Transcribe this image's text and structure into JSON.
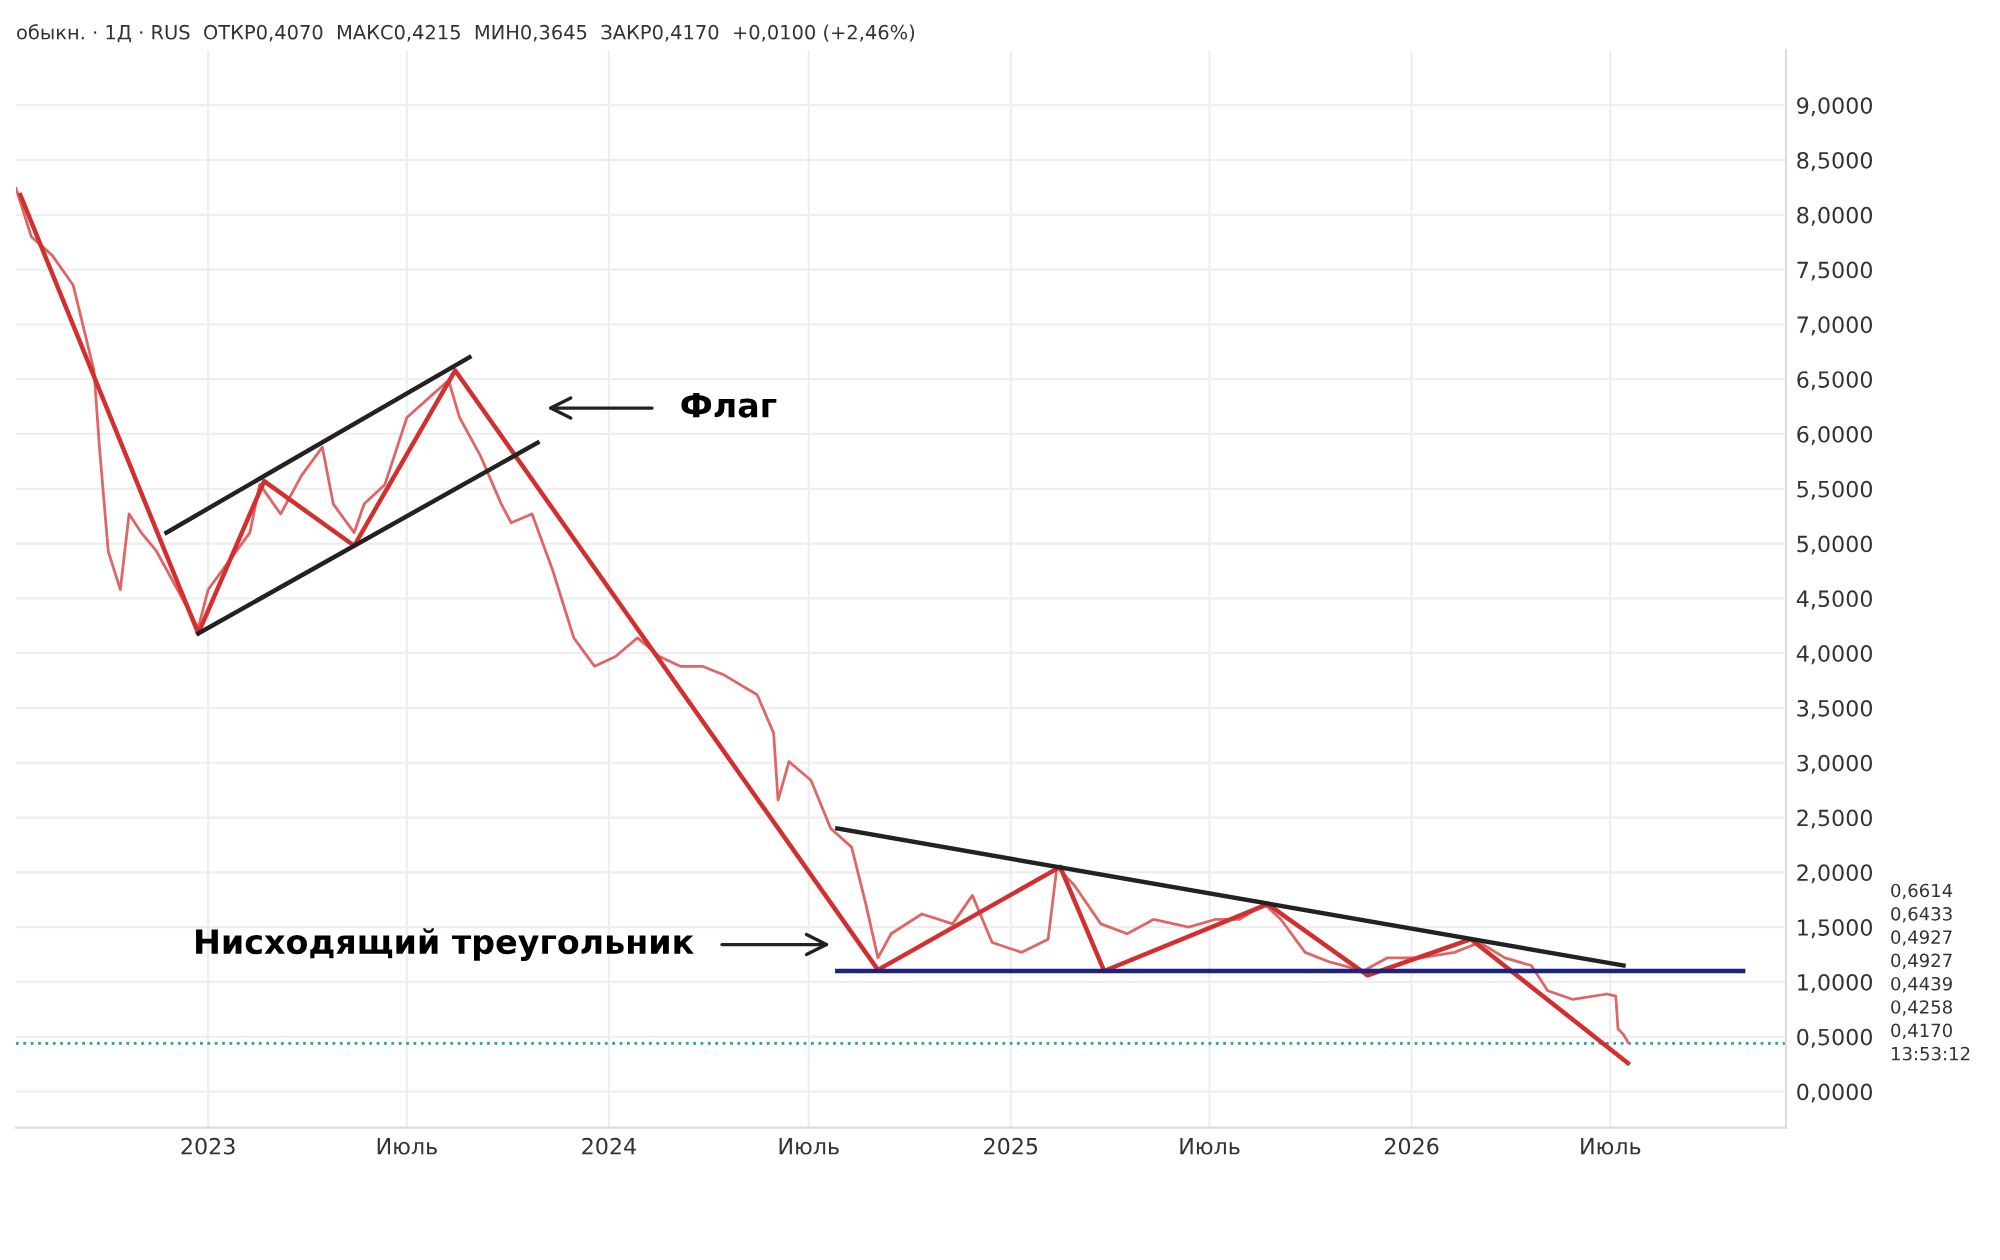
{
  "chart_data": {
    "type": "line",
    "title": "обыкн. · 1Д · RUS  ОТКР0,4070  МАКС0,4215  МИН0,3645  ЗАКР0,4170  +0,0100 (+2,46%)",
    "series": [
      {
        "color": "#e06666",
        "x": [
          "2022-07-10",
          "2022-07-24",
          "2022-08-12",
          "2022-08-31",
          "2022-09-19",
          "2022-09-24",
          "2022-10-02",
          "2022-10-13",
          "2022-10-21",
          "2022-11-01",
          "2022-11-15",
          "2022-12-04",
          "2022-12-23",
          "2023-01-01",
          "2023-01-20",
          "2023-02-08",
          "2023-02-17",
          "2023-03-08",
          "2023-03-27",
          "2023-04-15",
          "2023-04-25",
          "2023-05-14",
          "2023-05-23",
          "2023-06-11",
          "2023-07-01",
          "2023-07-20",
          "2023-08-08",
          "2023-08-18",
          "2023-09-06",
          "2023-09-25",
          "2023-10-04",
          "2023-10-23",
          "2023-11-11",
          "2023-11-30",
          "2023-12-19",
          "2024-01-07",
          "2024-01-27",
          "2024-02-16",
          "2024-03-06",
          "2024-03-26",
          "2024-04-15",
          "2024-05-15",
          "2024-05-30",
          "2024-06-03",
          "2024-06-13",
          "2024-07-03",
          "2024-07-21",
          "2024-08-09",
          "2024-08-22",
          "2024-09-02",
          "2024-09-14",
          "2024-10-12",
          "2024-11-09",
          "2024-11-27",
          "2024-12-15",
          "2025-01-11",
          "2025-02-04",
          "2025-02-12",
          "2025-02-28",
          "2025-03-24",
          "2025-04-17",
          "2025-05-11",
          "2025-06-12",
          "2025-07-06",
          "2025-07-28",
          "2025-08-20",
          "2025-09-04",
          "2025-09-26",
          "2025-10-19",
          "2025-11-18",
          "2025-12-10",
          "2026-01-09",
          "2026-02-09",
          "2026-03-04",
          "2026-03-27",
          "2026-04-20",
          "2026-05-05",
          "2026-05-28",
          "2026-06-28",
          "2026-07-06",
          "2026-07-08",
          "2026-07-13",
          "2026-07-17"
        ],
        "values": [
          8.24,
          7.8,
          7.63,
          7.36,
          6.58,
          5.88,
          4.93,
          4.58,
          5.27,
          5.1,
          4.93,
          4.58,
          4.23,
          4.58,
          4.84,
          5.1,
          5.54,
          5.27,
          5.62,
          5.88,
          5.36,
          5.1,
          5.36,
          5.54,
          6.15,
          6.32,
          6.49,
          6.15,
          5.8,
          5.36,
          5.19,
          5.27,
          4.75,
          4.14,
          3.88,
          3.97,
          4.14,
          3.97,
          3.88,
          3.88,
          3.8,
          3.62,
          3.27,
          2.66,
          3.01,
          2.84,
          2.4,
          2.23,
          1.71,
          1.22,
          1.44,
          1.62,
          1.53,
          1.79,
          1.36,
          1.27,
          1.39,
          2.05,
          1.88,
          1.53,
          1.44,
          1.57,
          1.5,
          1.57,
          1.57,
          1.71,
          1.57,
          1.27,
          1.18,
          1.1,
          1.22,
          1.22,
          1.27,
          1.36,
          1.22,
          1.15,
          0.92,
          0.84,
          0.89,
          0.87,
          0.57,
          0.52,
          0.45
        ]
      },
      {
        "color": "#d32f2f",
        "x": [
          "2022-07-14",
          "2022-12-23",
          "2023-02-21",
          "2023-05-14",
          "2023-08-14",
          "2024-09-02",
          "2025-02-15",
          "2025-03-27",
          "2025-08-23",
          "2025-11-22",
          "2026-02-24",
          "2026-07-17"
        ],
        "values": [
          8.18,
          4.18,
          5.57,
          4.98,
          6.58,
          1.11,
          2.05,
          1.1,
          1.71,
          1.06,
          1.39,
          0.26
        ]
      },
      {
        "color": "#222222",
        "x": [
          "2022-11-24",
          "2023-08-27"
        ],
        "values": [
          5.1,
          6.7
        ]
      },
      {
        "color": "#222222",
        "x": [
          "2022-12-23",
          "2023-10-28"
        ],
        "values": [
          4.18,
          5.92
        ]
      },
      {
        "color": "#222222",
        "x": [
          "2024-07-27",
          "2026-07-13"
        ],
        "values": [
          2.4,
          1.15
        ]
      },
      {
        "color": "#1a237e",
        "x": [
          "2024-07-27",
          "2026-10-30"
        ],
        "values": [
          1.1,
          1.1
        ]
      }
    ],
    "annotations": [
      "Флаг",
      "Нисходящий треугольник",
      "0,6614",
      "0,6433",
      "0,4927",
      "0,4927",
      "0,4439",
      "0,4258",
      "0,4170",
      "13:53:12"
    ],
    "ref_lines": [
      {
        "axis": "y",
        "value": 0.44,
        "color": "#26a69a",
        "line_style": "dotted"
      }
    ],
    "xlim": [
      "2022-07-10",
      "2026-12-08"
    ],
    "xticks": [
      {
        "value": "2023-01-01",
        "label": "2023"
      },
      {
        "value": "2023-07-01",
        "label": "Июль"
      },
      {
        "value": "2024-01-01",
        "label": "2024"
      },
      {
        "value": "2024-07-01",
        "label": "Июль"
      },
      {
        "value": "2025-01-01",
        "label": "2025"
      },
      {
        "value": "2025-07-01",
        "label": "Июль"
      },
      {
        "value": "2026-01-01",
        "label": "2026"
      },
      {
        "value": "2026-07-01",
        "label": "Июль"
      }
    ],
    "ylim": [
      -0.33,
      9.5
    ],
    "yticks": [
      {
        "value": 0,
        "label": "0,0000"
      },
      {
        "value": 0.5,
        "label": "0,5000"
      },
      {
        "value": 1,
        "label": "1,0000"
      },
      {
        "value": 1.5,
        "label": "1,5000"
      },
      {
        "value": 2,
        "label": "2,0000"
      },
      {
        "value": 2.5,
        "label": "2,5000"
      },
      {
        "value": 3,
        "label": "3,0000"
      },
      {
        "value": 3.5,
        "label": "3,5000"
      },
      {
        "value": 4,
        "label": "4,0000"
      },
      {
        "value": 4.5,
        "label": "4,5000"
      },
      {
        "value": 5,
        "label": "5,0000"
      },
      {
        "value": 5.5,
        "label": "5,5000"
      },
      {
        "value": 6,
        "label": "6,0000"
      },
      {
        "value": 6.5,
        "label": "6,5000"
      },
      {
        "value": 7,
        "label": "7,0000"
      },
      {
        "value": 7.5,
        "label": "7,5000"
      },
      {
        "value": 8,
        "label": "8,0000"
      },
      {
        "value": 8.5,
        "label": "8,5000"
      },
      {
        "value": 9,
        "label": "9,0000"
      }
    ],
    "grid": true,
    "marker": "none",
    "line_style": "solid",
    "legend": false
  }
}
